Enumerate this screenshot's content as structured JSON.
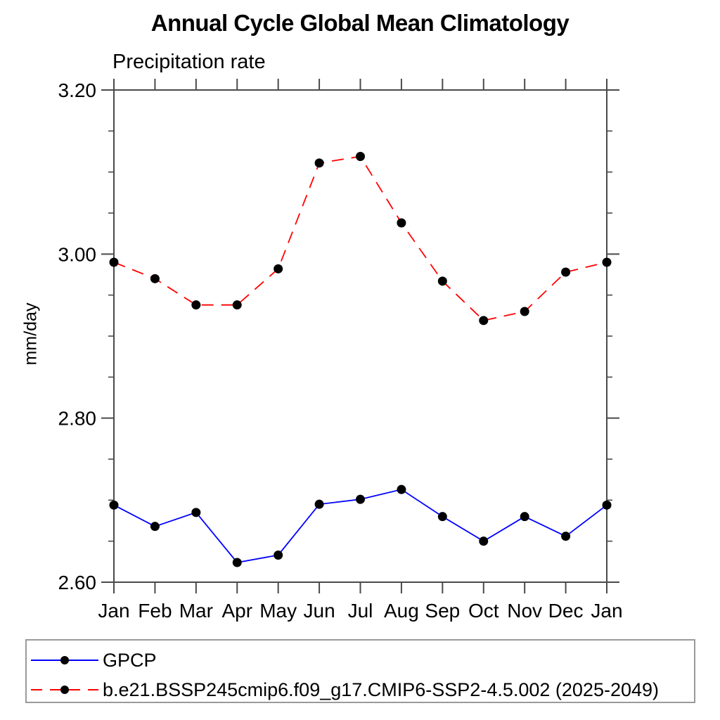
{
  "chart_data": {
    "type": "line",
    "title": "Annual Cycle Global Mean Climatology",
    "subtitle": "Precipitation rate",
    "ylabel": "mm/day",
    "xlabel": "",
    "ylim": [
      2.6,
      3.2
    ],
    "ytick_values": [
      2.6,
      2.8,
      3.0,
      3.2
    ],
    "ytick_labels": [
      "2.60",
      "2.80",
      "3.00",
      "3.20"
    ],
    "minor_tick_step": 0.05,
    "grid": false,
    "legend_position": "bottom-left-box",
    "categories": [
      "Jan",
      "Feb",
      "Mar",
      "Apr",
      "May",
      "Jun",
      "Jul",
      "Aug",
      "Sep",
      "Oct",
      "Nov",
      "Dec",
      "Jan"
    ],
    "series": [
      {
        "name": "GPCP",
        "color": "#0000ff",
        "line_style": "solid",
        "marker": "filled-circle",
        "marker_color": "#000000",
        "values": [
          2.694,
          2.668,
          2.685,
          2.624,
          2.633,
          2.695,
          2.701,
          2.713,
          2.68,
          2.65,
          2.68,
          2.656,
          2.694
        ]
      },
      {
        "name": "b.e21.BSSP245cmip6.f09_g17.CMIP6-SSP2-4.5.002 (2025-2049)",
        "color": "#ff0000",
        "line_style": "dashed",
        "marker": "filled-circle",
        "marker_color": "#000000",
        "values": [
          2.99,
          2.97,
          2.938,
          2.938,
          2.982,
          3.111,
          3.119,
          3.038,
          2.967,
          2.919,
          2.93,
          2.978,
          2.99
        ]
      }
    ],
    "axis_color": "#4a4a4a",
    "text_color": "#000000"
  }
}
